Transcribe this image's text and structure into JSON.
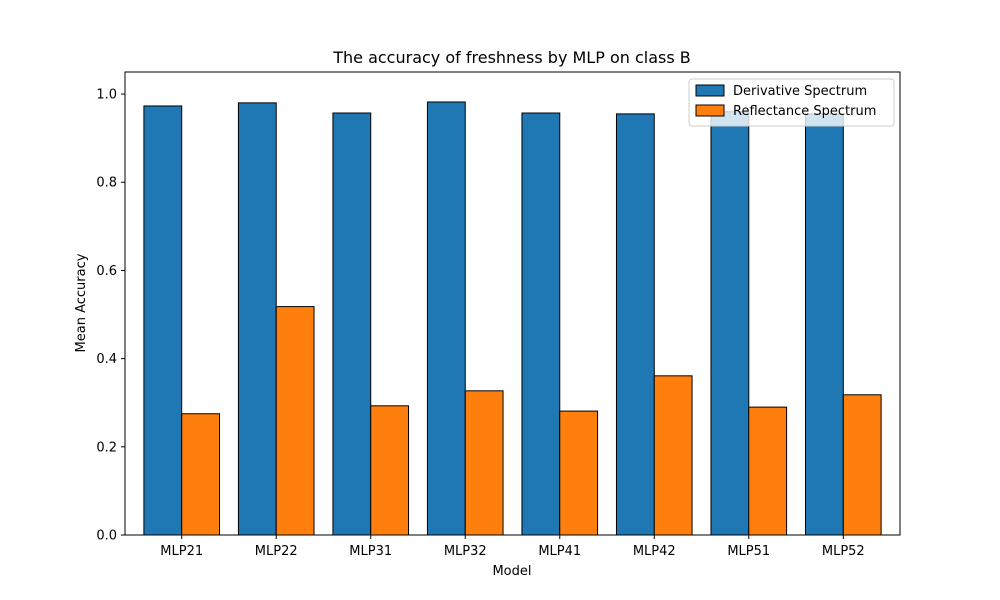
{
  "chart_data": {
    "type": "bar",
    "title": "The accuracy of freshness by MLP on class B",
    "xlabel": "Model",
    "ylabel": "Mean Accuracy",
    "categories": [
      "MLP21",
      "MLP22",
      "MLP31",
      "MLP32",
      "MLP41",
      "MLP42",
      "MLP51",
      "MLP52"
    ],
    "series": [
      {
        "name": "Derivative Spectrum",
        "color": "#1f77b4",
        "values": [
          0.973,
          0.98,
          0.957,
          0.982,
          0.957,
          0.955,
          0.96,
          0.955
        ]
      },
      {
        "name": "Reflectance Spectrum",
        "color": "#ff7f0e",
        "values": [
          0.275,
          0.518,
          0.293,
          0.327,
          0.281,
          0.361,
          0.29,
          0.318
        ]
      }
    ],
    "ylim": [
      0,
      1.05
    ],
    "yticks": [
      "0.0",
      "0.2",
      "0.4",
      "0.6",
      "0.8",
      "1.0"
    ],
    "grid": false,
    "legend_position": "top-right"
  }
}
